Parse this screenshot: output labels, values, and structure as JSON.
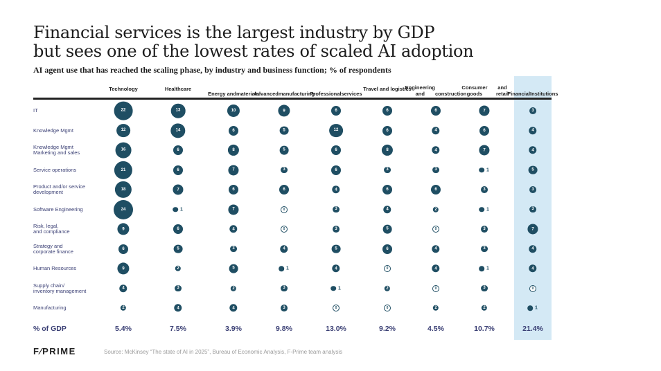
{
  "title_lines": [
    "Financial services is the largest industry by GDP",
    "but sees one of the lowest rates of scaled AI adoption"
  ],
  "subtitle": "AI agent use that has reached the scaling phase, by industry and business function; % of respondents",
  "gdp_row_label": "% of GDP",
  "logo": "F⁄PRIME",
  "source": "Source: McKinsey “The state of AI in 2025”, Bureau of Economic Analysis, F-Prime team analysis",
  "colors": {
    "bubble": "#1f4e63",
    "highlight_column": "#d4e9f5",
    "label_text": "#3a3f74"
  },
  "chart_data": {
    "type": "bubble-matrix",
    "title": "Financial services is the largest industry by GDP but sees one of the lowest rates of scaled AI adoption",
    "subtitle": "AI agent use that has reached the scaling phase, by industry and business function; % of respondents",
    "unit": "% of respondents",
    "highlighted_column": "Financial Institutions",
    "columns": [
      [
        "Technology"
      ],
      [
        "Healthcare"
      ],
      [
        "Energy and",
        "materials"
      ],
      [
        "Advanced",
        "manufacturing"
      ],
      [
        "Professional",
        "services"
      ],
      [
        "Travel and logistics"
      ],
      [
        "Engineering and",
        "construction"
      ],
      [
        "Consumer goods",
        "and retail"
      ],
      [
        "Financial",
        "Institutions"
      ]
    ],
    "rows": [
      {
        "label": [
          "IT"
        ],
        "values": [
          22,
          13,
          10,
          9,
          6,
          6,
          6,
          7,
          3
        ]
      },
      {
        "label": [
          "Knowledge Mgmt"
        ],
        "values": [
          12,
          14,
          6,
          5,
          12,
          6,
          4,
          6,
          4
        ]
      },
      {
        "label": [
          "Knowledge Mgmt",
          "Marketing and sales"
        ],
        "values": [
          16,
          6,
          8,
          5,
          6,
          8,
          4,
          7,
          4
        ]
      },
      {
        "label": [
          "Service operations"
        ],
        "values": [
          21,
          6,
          7,
          3,
          6,
          3,
          3,
          1,
          5
        ]
      },
      {
        "label": [
          "Product and/or service",
          "development"
        ],
        "values": [
          18,
          7,
          6,
          6,
          4,
          6,
          6,
          3,
          3
        ]
      },
      {
        "label": [
          "Software Engineering"
        ],
        "values": [
          24,
          1,
          7,
          0,
          3,
          4,
          2,
          1,
          3
        ]
      },
      {
        "label": [
          "Risk, legal,",
          "and compliance"
        ],
        "values": [
          9,
          6,
          4,
          0,
          3,
          5,
          0,
          3,
          7
        ]
      },
      {
        "label": [
          "Strategy and",
          "corporate finance"
        ],
        "values": [
          6,
          5,
          3,
          4,
          5,
          6,
          4,
          3,
          4
        ]
      },
      {
        "label": [
          "Human Resources"
        ],
        "values": [
          9,
          2,
          5,
          1,
          4,
          0,
          4,
          1,
          4
        ]
      },
      {
        "label": [
          "Supply chain/",
          "inventory management"
        ],
        "values": [
          4,
          3,
          2,
          3,
          1,
          2,
          0,
          3,
          0
        ]
      },
      {
        "label": [
          "Manufacturing"
        ],
        "values": [
          2,
          4,
          4,
          3,
          0,
          0,
          2,
          2,
          1
        ]
      }
    ],
    "gdp_share": [
      "5.4%",
      "7.5%",
      "3.9%",
      "9.8%",
      "13.0%",
      "9.2%",
      "4.5%",
      "10.7%",
      "21.4%"
    ]
  }
}
